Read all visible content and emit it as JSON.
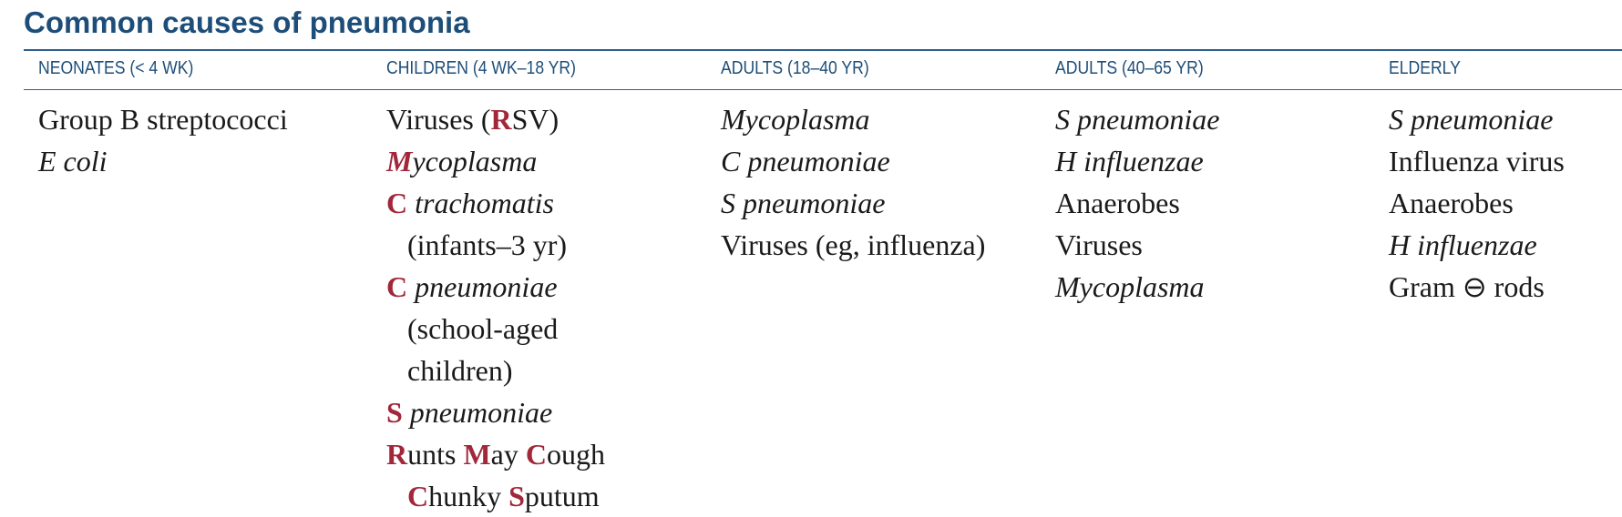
{
  "title": "Common causes of pneumonia",
  "colors": {
    "title": "#1d4e79",
    "rule": "#2e5f8a",
    "mnemonic_red": "#a2273a",
    "body_text": "#1a1a1a"
  },
  "columns": [
    {
      "header": "NEONATES (< 4 WK)",
      "entries": [
        [
          {
            "t": "Group B streptococci"
          }
        ],
        [
          {
            "t": "E coli",
            "i": true
          }
        ]
      ]
    },
    {
      "header": "CHILDREN (4 WK–18 YR)",
      "entries": [
        [
          {
            "t": "Viruses ("
          },
          {
            "t": "R",
            "r": true
          },
          {
            "t": "SV)"
          }
        ],
        [
          {
            "t": "M",
            "r": true,
            "i": true
          },
          {
            "t": "ycoplasma",
            "i": true
          }
        ],
        [
          {
            "t": "C",
            "r": true
          },
          {
            "t": " trachomatis",
            "i": true
          }
        ],
        [
          {
            "t": "(infants–3 yr)"
          }
        ],
        [
          {
            "t": "C",
            "r": true
          },
          {
            "t": " pneumoniae",
            "i": true
          }
        ],
        [
          {
            "t": "(school-aged"
          }
        ],
        [
          {
            "t": "children)"
          }
        ],
        [
          {
            "t": "S",
            "r": true
          },
          {
            "t": " pneumoniae",
            "i": true
          }
        ],
        [
          {
            "t": "R",
            "r": true
          },
          {
            "t": "unts "
          },
          {
            "t": "M",
            "r": true
          },
          {
            "t": "ay "
          },
          {
            "t": "C",
            "r": true
          },
          {
            "t": "ough"
          }
        ],
        [
          {
            "t": "C",
            "r": true
          },
          {
            "t": "hunky "
          },
          {
            "t": "S",
            "r": true
          },
          {
            "t": "putum"
          }
        ]
      ],
      "indent_lines": [
        3,
        5,
        6,
        9
      ]
    },
    {
      "header": "ADULTS (18–40 YR)",
      "entries": [
        [
          {
            "t": "Mycoplasma",
            "i": true
          }
        ],
        [
          {
            "t": "C pneumoniae",
            "i": true
          }
        ],
        [
          {
            "t": "S pneumoniae",
            "i": true
          }
        ],
        [
          {
            "t": "Viruses (eg, influenza)"
          }
        ]
      ]
    },
    {
      "header": "ADULTS (40–65 YR)",
      "entries": [
        [
          {
            "t": "S pneumoniae",
            "i": true
          }
        ],
        [
          {
            "t": "H influenzae",
            "i": true
          }
        ],
        [
          {
            "t": "Anaerobes"
          }
        ],
        [
          {
            "t": "Viruses"
          }
        ],
        [
          {
            "t": "Mycoplasma",
            "i": true
          }
        ]
      ]
    },
    {
      "header": "ELDERLY",
      "entries": [
        [
          {
            "t": "S pneumoniae",
            "i": true
          }
        ],
        [
          {
            "t": "Influenza virus"
          }
        ],
        [
          {
            "t": "Anaerobes"
          }
        ],
        [
          {
            "t": "H influenzae",
            "i": true
          }
        ],
        [
          {
            "t": "Gram ⊖ rods"
          }
        ]
      ]
    }
  ]
}
